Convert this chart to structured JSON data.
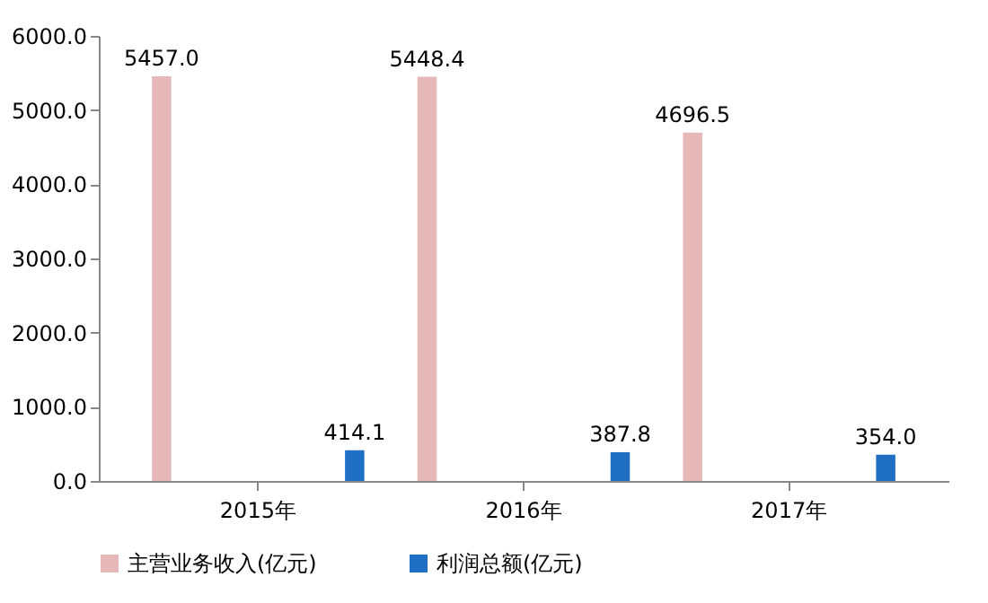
{
  "chart_data": {
    "type": "bar",
    "categories": [
      "2015年",
      "2016年",
      "2017年"
    ],
    "series": [
      {
        "name": "主营业务收入(亿元)",
        "color": "#e6b9b8",
        "values": [
          5457.0,
          5448.4,
          4696.5
        ],
        "value_labels": [
          "5457.0",
          "5448.4",
          "4696.5"
        ]
      },
      {
        "name": "利润总额(亿元)",
        "color": "#1f6fc4",
        "values": [
          414.1,
          387.8,
          354.0
        ],
        "value_labels": [
          "414.1",
          "387.8",
          "354.0"
        ]
      }
    ],
    "ylim": [
      0,
      6000
    ],
    "yticks": [
      {
        "value": 0,
        "label": "0.0"
      },
      {
        "value": 1000,
        "label": "1000.0"
      },
      {
        "value": 2000,
        "label": "2000.0"
      },
      {
        "value": 3000,
        "label": "3000.0"
      },
      {
        "value": 4000,
        "label": "4000.0"
      },
      {
        "value": 5000,
        "label": "5000.0"
      },
      {
        "value": 6000,
        "label": "6000.0"
      }
    ],
    "grid": false,
    "legend": "bottom"
  }
}
